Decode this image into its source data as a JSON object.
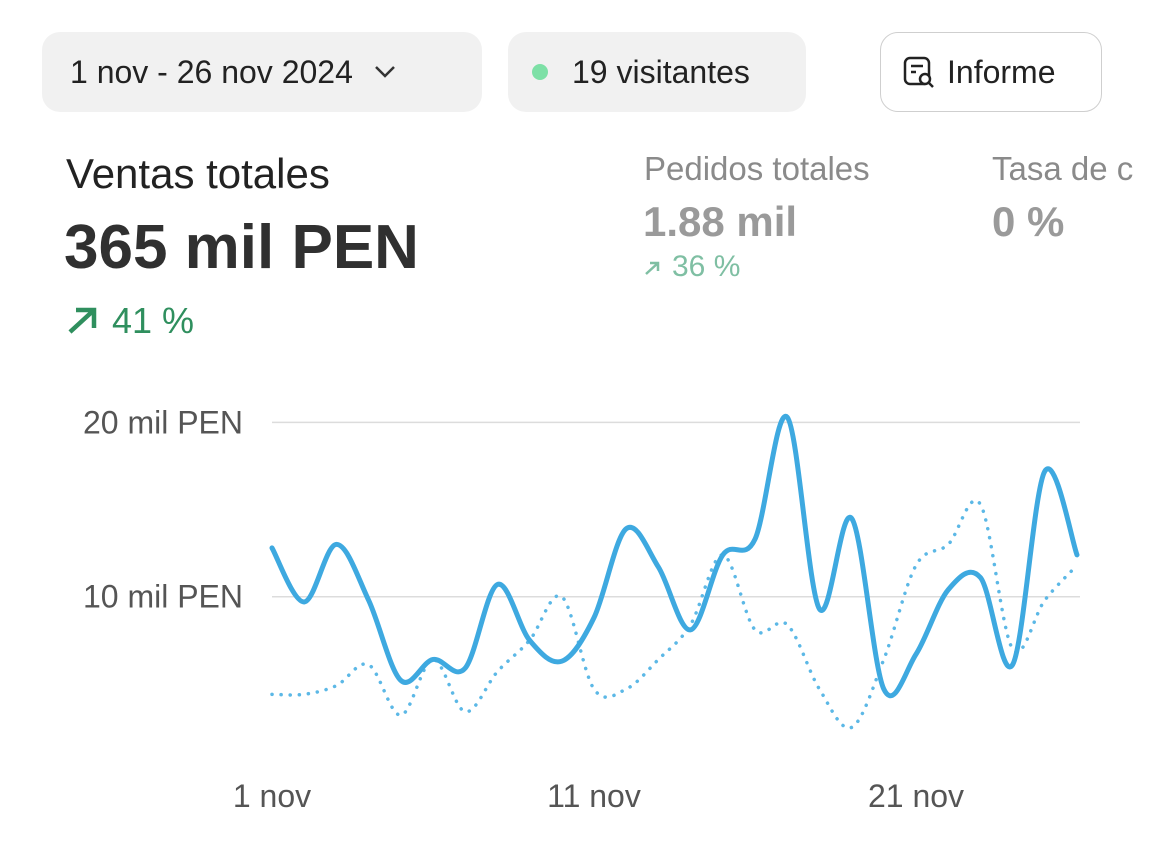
{
  "header": {
    "date_range": "1 nov - 26 nov 2024",
    "visitors": "19 visitantes",
    "report_button": "Informe"
  },
  "metrics": [
    {
      "label": "Ventas totales",
      "value": "365 mil PEN",
      "change": "41 %"
    },
    {
      "label": "Pedidos totales",
      "value": "1.88 mil",
      "change": "36 %"
    },
    {
      "label": "Tasa de c",
      "value": "0 %"
    }
  ],
  "chart_data": {
    "type": "line",
    "categories": [
      "1 nov",
      null,
      null,
      null,
      null,
      null,
      null,
      null,
      null,
      null,
      "11 nov",
      null,
      null,
      null,
      null,
      null,
      null,
      null,
      null,
      null,
      "21 nov",
      null,
      null,
      null,
      null,
      null
    ],
    "series": [
      {
        "color": "#3ea9e0",
        "line_style": "solid",
        "values": [
          12800,
          9700,
          13000,
          9800,
          5200,
          6400,
          5900,
          10700,
          7500,
          6300,
          8800,
          13900,
          11700,
          8100,
          12400,
          13300,
          20300,
          9300,
          14500,
          4700,
          6700,
          10400,
          11100,
          6100,
          17200,
          12400
        ]
      },
      {
        "color": "#5cb8e6",
        "line_style": "dotted",
        "values": [
          4400,
          4400,
          4900,
          6100,
          3200,
          6400,
          3400,
          5700,
          7500,
          10000,
          4700,
          4700,
          6400,
          8400,
          12400,
          8100,
          8400,
          4700,
          2500,
          6400,
          11800,
          13000,
          15300,
          7000,
          9800,
          11800
        ]
      }
    ],
    "ylim": [
      0,
      21000
    ],
    "yticks": [
      {
        "value": 10000,
        "label": "10 mil PEN"
      },
      {
        "value": 20000,
        "label": "20 mil PEN"
      }
    ],
    "grid": true
  }
}
